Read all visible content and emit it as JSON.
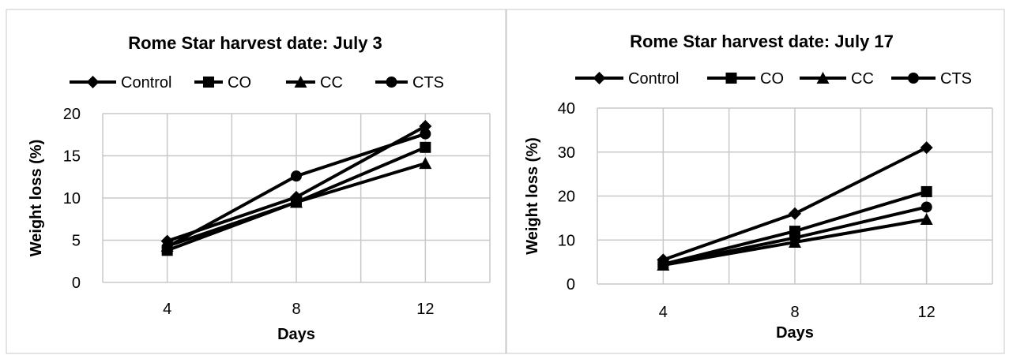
{
  "chart_data": [
    {
      "type": "line",
      "title": "Rome Star harvest date: July 3",
      "xlabel": "Days",
      "ylabel": "Weight loss (%)",
      "categories": [
        "4",
        "8",
        "12"
      ],
      "ylim": [
        0,
        20
      ],
      "yticks": [
        "0",
        "5",
        "10",
        "15",
        "20"
      ],
      "grid": true,
      "legend": "top",
      "series": [
        {
          "name": "Control",
          "marker": "diamond",
          "values": [
            4.9,
            10.1,
            18.5
          ]
        },
        {
          "name": "CO",
          "marker": "square",
          "values": [
            3.8,
            9.5,
            16.0
          ]
        },
        {
          "name": "CC",
          "marker": "triangle",
          "values": [
            4.3,
            9.5,
            14.1
          ]
        },
        {
          "name": "CTS",
          "marker": "circle",
          "values": [
            4.2,
            12.6,
            17.6
          ]
        }
      ]
    },
    {
      "type": "line",
      "title": "Rome Star harvest date: July  17",
      "xlabel": "Days",
      "ylabel": "Weight loss (%)",
      "categories": [
        "4",
        "8",
        "12"
      ],
      "ylim": [
        0,
        40
      ],
      "yticks": [
        "0",
        "10",
        "20",
        "30",
        "40"
      ],
      "grid": true,
      "legend": "top",
      "series": [
        {
          "name": "Control",
          "marker": "diamond",
          "values": [
            5.5,
            16.0,
            31.0
          ]
        },
        {
          "name": "CO",
          "marker": "square",
          "values": [
            4.5,
            12.0,
            21.0
          ]
        },
        {
          "name": "CC",
          "marker": "triangle",
          "values": [
            4.3,
            9.5,
            14.7
          ]
        },
        {
          "name": "CTS",
          "marker": "circle",
          "values": [
            4.4,
            10.5,
            17.5
          ]
        }
      ]
    }
  ],
  "colors": {
    "line": "#000000",
    "grid": "#c8c8c8",
    "frame": "#c8c8c8"
  }
}
